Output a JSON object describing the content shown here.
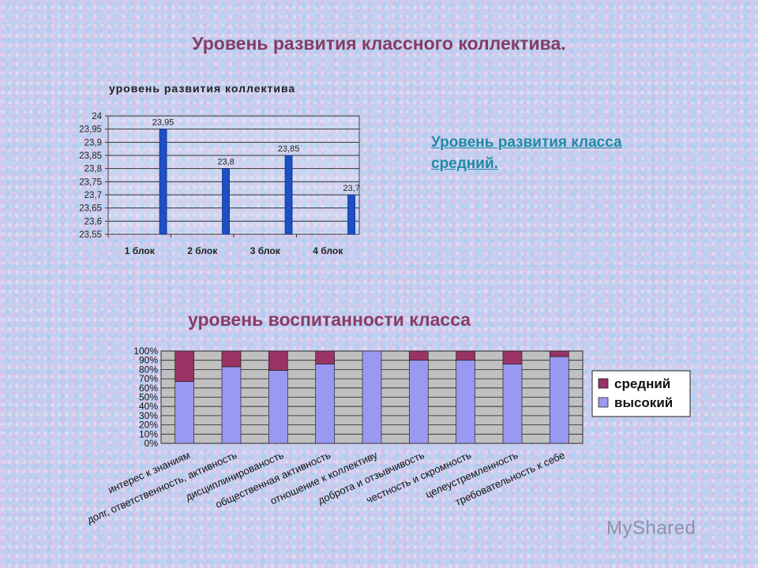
{
  "page": {
    "title": "Уровень развития классного коллектива."
  },
  "note": {
    "text": "Уровень развития класса средний."
  },
  "watermark": {
    "text": "MyShared"
  },
  "chart_data": [
    {
      "type": "bar",
      "title": "уровень развития коллектива",
      "categories": [
        "1 блок",
        "2 блок",
        "3 блок",
        "4 блок"
      ],
      "values": [
        23.95,
        23.8,
        23.85,
        23.7
      ],
      "data_labels": [
        "23,95",
        "23,8",
        "23,85",
        "23,7"
      ],
      "ylim": [
        23.55,
        24
      ],
      "yticks": [
        "23,55",
        "23,6",
        "23,65",
        "23,7",
        "23,75",
        "23,8",
        "23,85",
        "23,9",
        "23,95",
        "24"
      ],
      "grid": true,
      "colors": {
        "bar": "#1e4fc4"
      }
    },
    {
      "type": "bar",
      "stacked": true,
      "title": "уровень воспитанности класса",
      "categories": [
        "интерес к знаниям",
        "долг, ответственность, активность",
        "дисциплинированость",
        "общественная активность",
        "отношение к коллективу",
        "доброта и отзывчивость",
        "честность и скромность",
        "целеустремленность",
        "требовательность к себе"
      ],
      "series": [
        {
          "name": "высокий",
          "color": "#9999f2",
          "values": [
            67,
            83,
            79,
            86,
            100,
            90,
            90,
            86,
            94
          ]
        },
        {
          "name": "средний",
          "color": "#993366",
          "values": [
            33,
            17,
            21,
            14,
            0,
            10,
            10,
            14,
            6
          ]
        }
      ],
      "yticks": [
        "0%",
        "10%",
        "20%",
        "30%",
        "40%",
        "50%",
        "60%",
        "70%",
        "80%",
        "90%",
        "100%"
      ],
      "ylim": [
        0,
        100
      ],
      "grid": true,
      "legend": "right",
      "legend_entries": [
        "средний",
        "высокий"
      ]
    }
  ]
}
